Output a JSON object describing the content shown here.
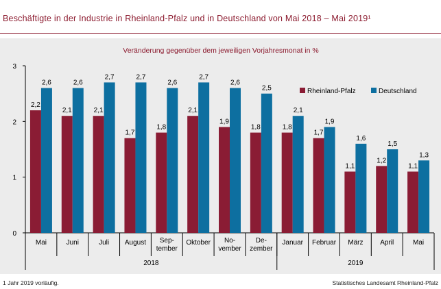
{
  "title": "Beschäftigte in der Industrie in Rheinland-Pfalz und in Deutschland von Mai 2018 – Mai 2019¹",
  "footnote": "1 Jahr 2019 vorläufig.",
  "source": "Statistisches Landesamt Rheinland-Pfalz",
  "colors": {
    "title": "#8b1a2e",
    "series1": "#8a1c34",
    "series2": "#0d6fa0",
    "panel": "#ececec"
  },
  "chart_data": {
    "type": "bar",
    "subtitle": "Veränderung gegenüber dem jeweiligen Vorjahresmonat in %",
    "categories": [
      [
        "Mai"
      ],
      [
        "Juni"
      ],
      [
        "Juli"
      ],
      [
        "August"
      ],
      [
        "Sep-",
        "tember"
      ],
      [
        "Oktober"
      ],
      [
        "No-",
        "vember"
      ],
      [
        "De-",
        "zember"
      ],
      [
        "Januar"
      ],
      [
        "Februar"
      ],
      [
        "März"
      ],
      [
        "April"
      ],
      [
        "Mai"
      ]
    ],
    "groups": [
      {
        "label": "2018",
        "from": 0,
        "to": 7
      },
      {
        "label": "2019",
        "from": 8,
        "to": 12
      }
    ],
    "series": [
      {
        "name": "Rheinland-Pfalz",
        "values": [
          2.2,
          2.1,
          2.1,
          1.7,
          1.8,
          2.1,
          1.9,
          1.8,
          1.8,
          1.7,
          1.1,
          1.2,
          1.1
        ],
        "labels": [
          "2,2",
          "2,1",
          "2,1",
          "1,7",
          "1,8",
          "2,1",
          "1,9",
          "1,8",
          "1,8",
          "1,7",
          "1,1",
          "1,2",
          "1,1"
        ]
      },
      {
        "name": "Deutschland",
        "values": [
          2.6,
          2.6,
          2.7,
          2.7,
          2.6,
          2.7,
          2.6,
          2.5,
          2.1,
          1.9,
          1.6,
          1.5,
          1.3
        ],
        "labels": [
          "2,6",
          "2,6",
          "2,7",
          "2,7",
          "2,6",
          "2,7",
          "2,6",
          "2,5",
          "2,1",
          "1,9",
          "1,6",
          "1,5",
          "1,3"
        ]
      }
    ],
    "ylim": [
      0,
      3
    ],
    "yticks": [
      0,
      1,
      2,
      3
    ],
    "grid": false,
    "legend": "top-right"
  }
}
